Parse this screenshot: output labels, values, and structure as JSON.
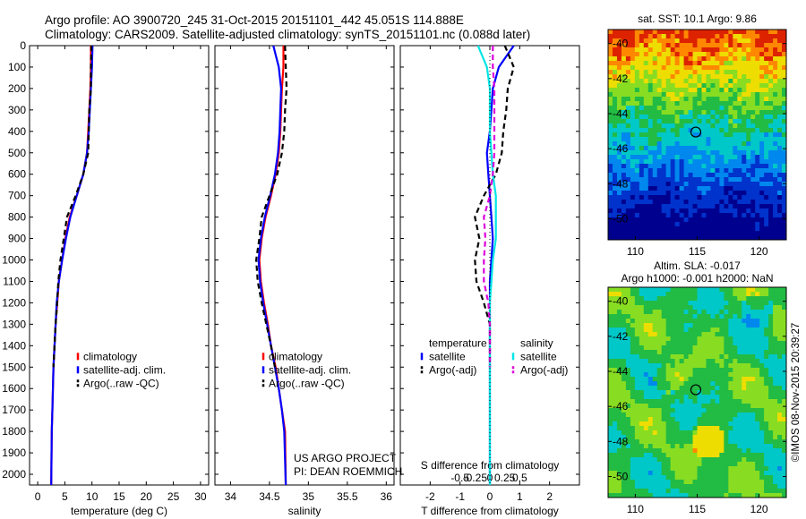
{
  "header": {
    "line1": "Argo profile: AO 3900720_245 31-Oct-2015 20151101_442 45.051S 114.888E",
    "line2": "Climatology: CARS2009. Satellite-adjusted climatology: synTS_20151101.nc (0.088d later)"
  },
  "credit": {
    "line1": "US ARGO PROJECT",
    "line2": "PI: DEAN ROEMMICH"
  },
  "colors": {
    "climatology": "#ff0000",
    "satellite": "#0000ff",
    "argo": "#000000",
    "sal_satellite": "#00e5e5",
    "sal_argo": "#dd00dd"
  },
  "chart_data": [
    {
      "type": "line",
      "xlabel": "temperature (deg C)",
      "xticks": [
        0,
        5,
        10,
        15,
        20,
        25,
        30
      ],
      "xlim": [
        -1.5,
        31.5
      ],
      "yticks": [
        0,
        100,
        200,
        300,
        400,
        500,
        600,
        700,
        800,
        900,
        1000,
        1100,
        1200,
        1300,
        1400,
        1500,
        1600,
        1700,
        1800,
        1900,
        2000
      ],
      "ylim": [
        0,
        2050
      ],
      "y_reversed": true,
      "legend": [
        "climatology",
        "satellite-adj. clim.",
        "Argo(..raw -QC)"
      ],
      "series": [
        {
          "name": "climatology",
          "style": "solid",
          "color": "climatology",
          "x": [
            9.8,
            9.8,
            9.7,
            9.5,
            9.3,
            9.1,
            8.4,
            7.2,
            5.9,
            5.1,
            4.5,
            3.9,
            3.6,
            3.3,
            3.1,
            2.9,
            2.8,
            2.7,
            2.6,
            2.5
          ],
          "y": [
            0,
            100,
            200,
            300,
            400,
            500,
            600,
            700,
            800,
            900,
            1000,
            1100,
            1200,
            1300,
            1400,
            1500,
            1600,
            1700,
            1800,
            2050
          ]
        },
        {
          "name": "satellite-adj. clim.",
          "style": "solid",
          "color": "satellite",
          "x": [
            10.1,
            10.0,
            9.8,
            9.6,
            9.4,
            9.1,
            8.4,
            7.2,
            6.0,
            5.2,
            4.5,
            3.9,
            3.5,
            3.3,
            3.1,
            2.9,
            2.8,
            2.7,
            2.6,
            2.5
          ],
          "y": [
            0,
            100,
            200,
            300,
            400,
            500,
            600,
            700,
            800,
            900,
            1000,
            1100,
            1200,
            1300,
            1400,
            1500,
            1600,
            1700,
            1800,
            2050
          ]
        },
        {
          "name": "Argo(..raw -QC)",
          "style": "dashed",
          "color": "argo",
          "x": [
            9.9,
            9.8,
            9.8,
            9.5,
            9.4,
            9.3,
            8.4,
            7.0,
            5.4,
            4.8,
            4.2,
            3.8,
            3.6,
            3.3,
            3.1,
            2.9
          ],
          "y": [
            0,
            100,
            200,
            300,
            400,
            500,
            600,
            700,
            800,
            900,
            1000,
            1100,
            1200,
            1300,
            1400,
            1500
          ]
        }
      ]
    },
    {
      "type": "line",
      "xlabel": "salinity",
      "xticks": [
        34,
        34.5,
        35,
        35.5,
        36
      ],
      "xlim": [
        33.8,
        36.1
      ],
      "yticks": [
        0,
        100,
        200,
        300,
        400,
        500,
        600,
        700,
        800,
        900,
        1000,
        1100,
        1200,
        1300,
        1400,
        1500,
        1600,
        1700,
        1800,
        1900,
        2000
      ],
      "ylim": [
        0,
        2050
      ],
      "y_reversed": true,
      "legend": [
        "climatology",
        "satellite-adj. clim.",
        "Argo(..raw -QC)"
      ],
      "series": [
        {
          "name": "climatology",
          "style": "solid",
          "color": "climatology",
          "x": [
            34.68,
            34.68,
            34.66,
            34.65,
            34.64,
            34.62,
            34.58,
            34.52,
            34.45,
            34.4,
            34.37,
            34.39,
            34.43,
            34.48,
            34.52,
            34.58,
            34.62,
            34.66,
            34.7,
            34.71
          ],
          "y": [
            0,
            100,
            200,
            300,
            400,
            500,
            600,
            700,
            800,
            900,
            1000,
            1100,
            1200,
            1300,
            1400,
            1500,
            1600,
            1700,
            1800,
            2050
          ]
        },
        {
          "name": "satellite-adj. clim.",
          "style": "solid",
          "color": "satellite",
          "x": [
            34.55,
            34.62,
            34.65,
            34.64,
            34.63,
            34.61,
            34.57,
            34.51,
            34.44,
            34.39,
            34.36,
            34.38,
            34.42,
            34.47,
            34.52,
            34.57,
            34.62,
            34.66,
            34.69,
            34.71
          ],
          "y": [
            0,
            100,
            200,
            300,
            400,
            500,
            600,
            700,
            800,
            900,
            1000,
            1100,
            1200,
            1300,
            1400,
            1500,
            1600,
            1700,
            1800,
            2050
          ]
        },
        {
          "name": "Argo(..raw -QC)",
          "style": "dashed",
          "color": "argo",
          "x": [
            34.7,
            34.71,
            34.72,
            34.7,
            34.69,
            34.66,
            34.6,
            34.5,
            34.4,
            34.37,
            34.33,
            34.35,
            34.4,
            34.46,
            34.52,
            34.57
          ],
          "y": [
            0,
            100,
            200,
            300,
            400,
            500,
            600,
            700,
            800,
            900,
            1000,
            1100,
            1200,
            1300,
            1400,
            1500
          ]
        }
      ]
    },
    {
      "type": "line",
      "xlabel": "T difference from climatology",
      "xlabel2": "S difference from climatology",
      "xticks": [
        -2,
        -1,
        0,
        1,
        2
      ],
      "xticklabels": [
        "-2",
        "-1",
        "0",
        "1",
        "2"
      ],
      "xticks2": [
        -0.5,
        -0.25,
        0,
        0.25,
        0.5
      ],
      "xticklabels2": [
        "-0.5",
        "-0.25",
        "0",
        "0.25",
        "0.5"
      ],
      "xlim": [
        -3,
        3
      ],
      "yticks": [
        0,
        100,
        200,
        300,
        400,
        500,
        600,
        700,
        800,
        900,
        1000,
        1100,
        1200,
        1300,
        1400,
        1500,
        1600,
        1700,
        1800,
        1900,
        2000
      ],
      "ylim": [
        0,
        2050
      ],
      "y_reversed": true,
      "legend_left": {
        "title": "temperature",
        "items": [
          "satellite",
          "Argo(-adj)"
        ]
      },
      "legend_right": {
        "title": "salinity",
        "items": [
          "satellite",
          "Argo(-adj)"
        ]
      },
      "series": [
        {
          "name": "satellite",
          "group": "temperature",
          "style": "solid",
          "color": "satellite",
          "x": [
            0.8,
            0.3,
            0.1,
            0.05,
            0.0,
            -0.1,
            -0.05,
            0.0,
            0.05,
            0.1,
            0.05,
            0.0,
            0.0,
            0.0,
            0.0,
            0.0,
            0.0,
            0.0,
            0.0,
            0.0
          ],
          "y": [
            0,
            100,
            200,
            300,
            400,
            500,
            600,
            700,
            800,
            900,
            1000,
            1100,
            1200,
            1300,
            1400,
            1500,
            1600,
            1700,
            1800,
            2050
          ]
        },
        {
          "name": "Argo(-adj)",
          "group": "temperature",
          "style": "dashed",
          "color": "argo",
          "x": [
            0.5,
            0.8,
            0.6,
            0.55,
            0.45,
            0.4,
            0.2,
            -0.2,
            -0.5,
            -0.35,
            -0.5,
            -0.45,
            -0.2,
            0.0,
            0.0,
            0.0
          ],
          "y": [
            0,
            100,
            200,
            300,
            400,
            500,
            600,
            700,
            800,
            900,
            1000,
            1100,
            1200,
            1300,
            1400,
            1500
          ]
        },
        {
          "name": "satellite",
          "group": "salinity",
          "style": "solid",
          "color": "sal_satellite",
          "x": [
            -0.4,
            -0.1,
            0.0,
            0.0,
            0.0,
            0.05,
            0.1,
            0.2,
            0.2,
            0.2,
            0.1,
            0.05,
            0.0,
            0.0,
            0.0,
            0.0,
            0.0,
            0.0,
            0.0,
            0.0
          ],
          "y": [
            0,
            100,
            200,
            300,
            400,
            500,
            600,
            700,
            800,
            900,
            1000,
            1100,
            1200,
            1300,
            1400,
            1500,
            1600,
            1700,
            1800,
            2050
          ]
        },
        {
          "name": "Argo(-adj)",
          "group": "salinity",
          "style": "dashed",
          "color": "sal_argo",
          "x": [
            0.1,
            0.1,
            0.15,
            0.15,
            0.15,
            0.15,
            0.1,
            0.0,
            -0.2,
            -0.15,
            -0.2,
            -0.2,
            -0.05,
            0.0,
            0.0,
            0.0
          ],
          "y": [
            0,
            100,
            200,
            300,
            400,
            500,
            600,
            700,
            800,
            900,
            1000,
            1100,
            1200,
            1300,
            1400,
            1500
          ]
        }
      ]
    },
    {
      "type": "heatmap",
      "title": "sat. SST: 10.1 Argo: 9.86",
      "xticks": [
        110,
        115,
        120
      ],
      "yticks": [
        -40,
        -42,
        -44,
        -46,
        -48,
        -50
      ],
      "xlim": [
        107.8,
        122.2
      ],
      "ylim": [
        -51.2,
        -39.2
      ],
      "marker": {
        "lon": 114.888,
        "lat": -45.051
      }
    },
    {
      "type": "heatmap",
      "title": "Altim. SLA: -0.017",
      "subtitle": "Argo h1000: -0.001 h2000: NaN",
      "xticks": [
        110,
        115,
        120
      ],
      "yticks": [
        -40,
        -42,
        -44,
        -46,
        -48,
        -50
      ],
      "xlim": [
        107.8,
        122.2
      ],
      "ylim": [
        -51.2,
        -39.2
      ],
      "side_label": "©IMOS 08-Nov-2015 20:39:27",
      "marker": {
        "lon": 114.888,
        "lat": -45.051
      }
    }
  ]
}
